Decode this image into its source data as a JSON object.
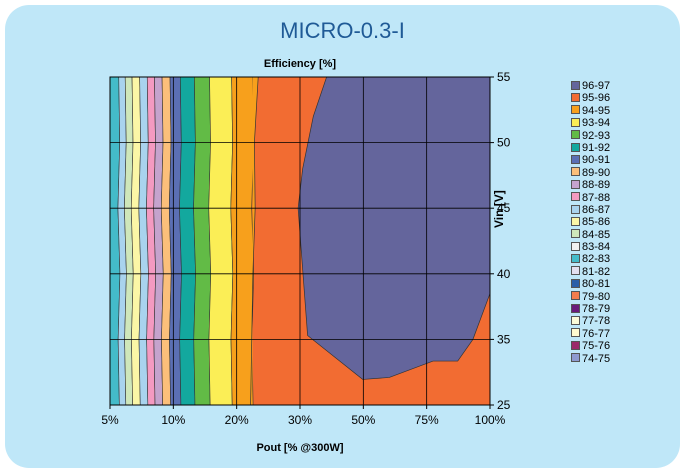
{
  "chart_data": {
    "type": "heatmap",
    "subtype": "contour",
    "title": "MICRO-0.3-I",
    "subtitle": "Efficiency [%]",
    "xlabel": "Pout [% @300W]",
    "ylabel": "Vin  [V]",
    "x_ticks": [
      "5%",
      "10%",
      "20%",
      "30%",
      "50%",
      "75%",
      "100%"
    ],
    "y_ticks": [
      "25",
      "35",
      "40",
      "45",
      "50",
      "55"
    ],
    "ylim": [
      25,
      55
    ],
    "grid": true,
    "legend_position": "right",
    "legend": [
      {
        "label": "96-97",
        "color": "#64659c"
      },
      {
        "label": "95-96",
        "color": "#f26c32"
      },
      {
        "label": "94-95",
        "color": "#f7a01c"
      },
      {
        "label": "93-94",
        "color": "#fbee56"
      },
      {
        "label": "92-93",
        "color": "#62bb46"
      },
      {
        "label": "91-92",
        "color": "#13a89e"
      },
      {
        "label": "90-91",
        "color": "#5b6fb4"
      },
      {
        "label": "89-90",
        "color": "#fbbf7a"
      },
      {
        "label": "88-89",
        "color": "#c5a3cd"
      },
      {
        "label": "87-88",
        "color": "#f49ac1"
      },
      {
        "label": "86-87",
        "color": "#a9d3ee"
      },
      {
        "label": "85-86",
        "color": "#fbf6a6"
      },
      {
        "label": "84-85",
        "color": "#cfe7ba"
      },
      {
        "label": "83-84",
        "color": "#f1f1f1"
      },
      {
        "label": "82-83",
        "color": "#44bbc9"
      },
      {
        "label": "81-82",
        "color": "#e3e0f0"
      },
      {
        "label": "80-81",
        "color": "#2a5ea8"
      },
      {
        "label": "79-80",
        "color": "#f47c4c"
      },
      {
        "label": "78-79",
        "color": "#6a1b7a"
      },
      {
        "label": "77-78",
        "color": "#fbfbd8"
      },
      {
        "label": "76-77",
        "color": "#fffad0"
      },
      {
        "label": "75-76",
        "color": "#9b2a6a"
      },
      {
        "label": "74-75",
        "color": "#8f9ad0"
      }
    ],
    "bands": [
      {
        "range": "82-83",
        "x_from_pct": 0,
        "x_to_pct": 2.3
      },
      {
        "range": "86-87",
        "x_from_pct": 2.3,
        "x_to_pct": 4.0
      },
      {
        "range": "84-85",
        "x_from_pct": 4.0,
        "x_to_pct": 5.8
      },
      {
        "range": "85-86",
        "x_from_pct": 5.8,
        "x_to_pct": 7.8
      },
      {
        "range": "86-87",
        "x_from_pct": 7.8,
        "x_to_pct": 9.8
      },
      {
        "range": "87-88",
        "x_from_pct": 9.8,
        "x_to_pct": 11.7
      },
      {
        "range": "88-89",
        "x_from_pct": 11.7,
        "x_to_pct": 13.7
      },
      {
        "range": "89-90",
        "x_from_pct": 13.7,
        "x_to_pct": 15.8
      },
      {
        "range": "90-91",
        "x_from_pct": 15.8,
        "x_to_pct": 18.5
      },
      {
        "range": "91-92",
        "x_from_pct": 18.5,
        "x_to_pct": 22.2
      },
      {
        "range": "92-93",
        "x_from_pct": 22.2,
        "x_to_pct": 26.2
      },
      {
        "range": "93-94",
        "x_from_pct": 26.2,
        "x_to_pct": 32.0
      },
      {
        "range": "94-95",
        "x_from_pct": 32.0,
        "x_to_pct": 37.5
      }
    ],
    "region_95_96_left_edge": [
      {
        "x_pct": 39.0,
        "vin": 55
      },
      {
        "x_pct": 38.0,
        "vin": 50
      },
      {
        "x_pct": 38.2,
        "vin": 45
      },
      {
        "x_pct": 37.6,
        "vin": 40
      },
      {
        "x_pct": 37.3,
        "vin": 35
      },
      {
        "x_pct": 37.0,
        "vin": 25
      }
    ],
    "region_96_97_outline": [
      {
        "x_pct": 57.0,
        "vin": 55
      },
      {
        "x_pct": 100,
        "vin": 55
      },
      {
        "x_pct": 100,
        "vin": 38.5
      },
      {
        "x_pct": 95.5,
        "vin": 35
      },
      {
        "x_pct": 91.5,
        "vin": 31.7
      },
      {
        "x_pct": 85,
        "vin": 31.7
      },
      {
        "x_pct": 73.5,
        "vin": 29.2
      },
      {
        "x_pct": 66.5,
        "vin": 28.9
      },
      {
        "x_pct": 52,
        "vin": 35.3
      },
      {
        "x_pct": 49.5,
        "vin": 45
      },
      {
        "x_pct": 50.7,
        "vin": 48
      },
      {
        "x_pct": 53.5,
        "vin": 52
      }
    ]
  }
}
